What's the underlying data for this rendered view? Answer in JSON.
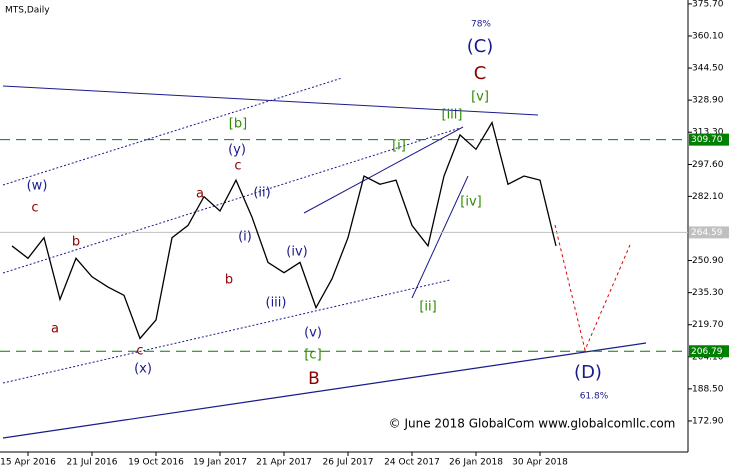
{
  "chart_data": {
    "type": "line",
    "title": "MTS,Daily",
    "categories": [
      null,
      "15 Apr 2016",
      null,
      null,
      null,
      "21 Jul 2016",
      null,
      null,
      null,
      "19 Oct 2016",
      null,
      null,
      null,
      "19 Jan 2017",
      null,
      null,
      null,
      "21 Apr 2017",
      null,
      null,
      null,
      "26 Jul 2017",
      null,
      null,
      null,
      "24 Oct 2017",
      null,
      null,
      null,
      "26 Jan 2018",
      null,
      null,
      null,
      "30 Apr 2018",
      null
    ],
    "series": [
      {
        "name": "MTS",
        "color": "#000000",
        "values": [
          258,
          252,
          262,
          232,
          252,
          243,
          238,
          234,
          213,
          222,
          262,
          268,
          282,
          275,
          290,
          272,
          250,
          245,
          250,
          228,
          242,
          262,
          292,
          288,
          290,
          268,
          258,
          292,
          312,
          305,
          318,
          288,
          292,
          290,
          258
        ]
      }
    ],
    "ylim": [
      157.8,
      377.6
    ],
    "yticks": [
      {
        "value": 375.7,
        "label": "375.70"
      },
      {
        "value": 360.1,
        "label": "360.10"
      },
      {
        "value": 344.5,
        "label": "344.50"
      },
      {
        "value": 328.9,
        "label": "328.90"
      },
      {
        "value": 313.3,
        "label": "313.30"
      },
      {
        "value": 297.6,
        "label": "297.60"
      },
      {
        "value": 282.1,
        "label": "282.10"
      },
      {
        "value": 250.9,
        "label": "250.90"
      },
      {
        "value": 235.3,
        "label": "235.30"
      },
      {
        "value": 219.7,
        "label": "219.70"
      },
      {
        "value": 204.1,
        "label": "204.10"
      },
      {
        "value": 188.5,
        "label": "188.50"
      },
      {
        "value": 172.9,
        "label": "172.90"
      }
    ],
    "levels": [
      {
        "value": 309.7,
        "label": "309.70",
        "color": "#008000"
      },
      {
        "value": 206.79,
        "label": "206.79",
        "color": "#008000"
      },
      {
        "value": 264.59,
        "label": "264.59",
        "color": "#c0c0c0"
      }
    ],
    "annotations": [
      "78%",
      "(C)",
      "C",
      "[v]",
      "[iii]",
      "[b]",
      "(y)",
      "c",
      "(ii)",
      "(w)",
      "c",
      "b",
      "a",
      "a",
      "(i)",
      "b",
      "(iv)",
      "(iii)",
      "[i]",
      "[iv]",
      "[ii]",
      "(v)",
      "[c]",
      "B",
      "c",
      "(x)",
      "(D)",
      "61.8%",
      "© June 2018 GlobalCom www.globalcomllc.com"
    ]
  }
}
